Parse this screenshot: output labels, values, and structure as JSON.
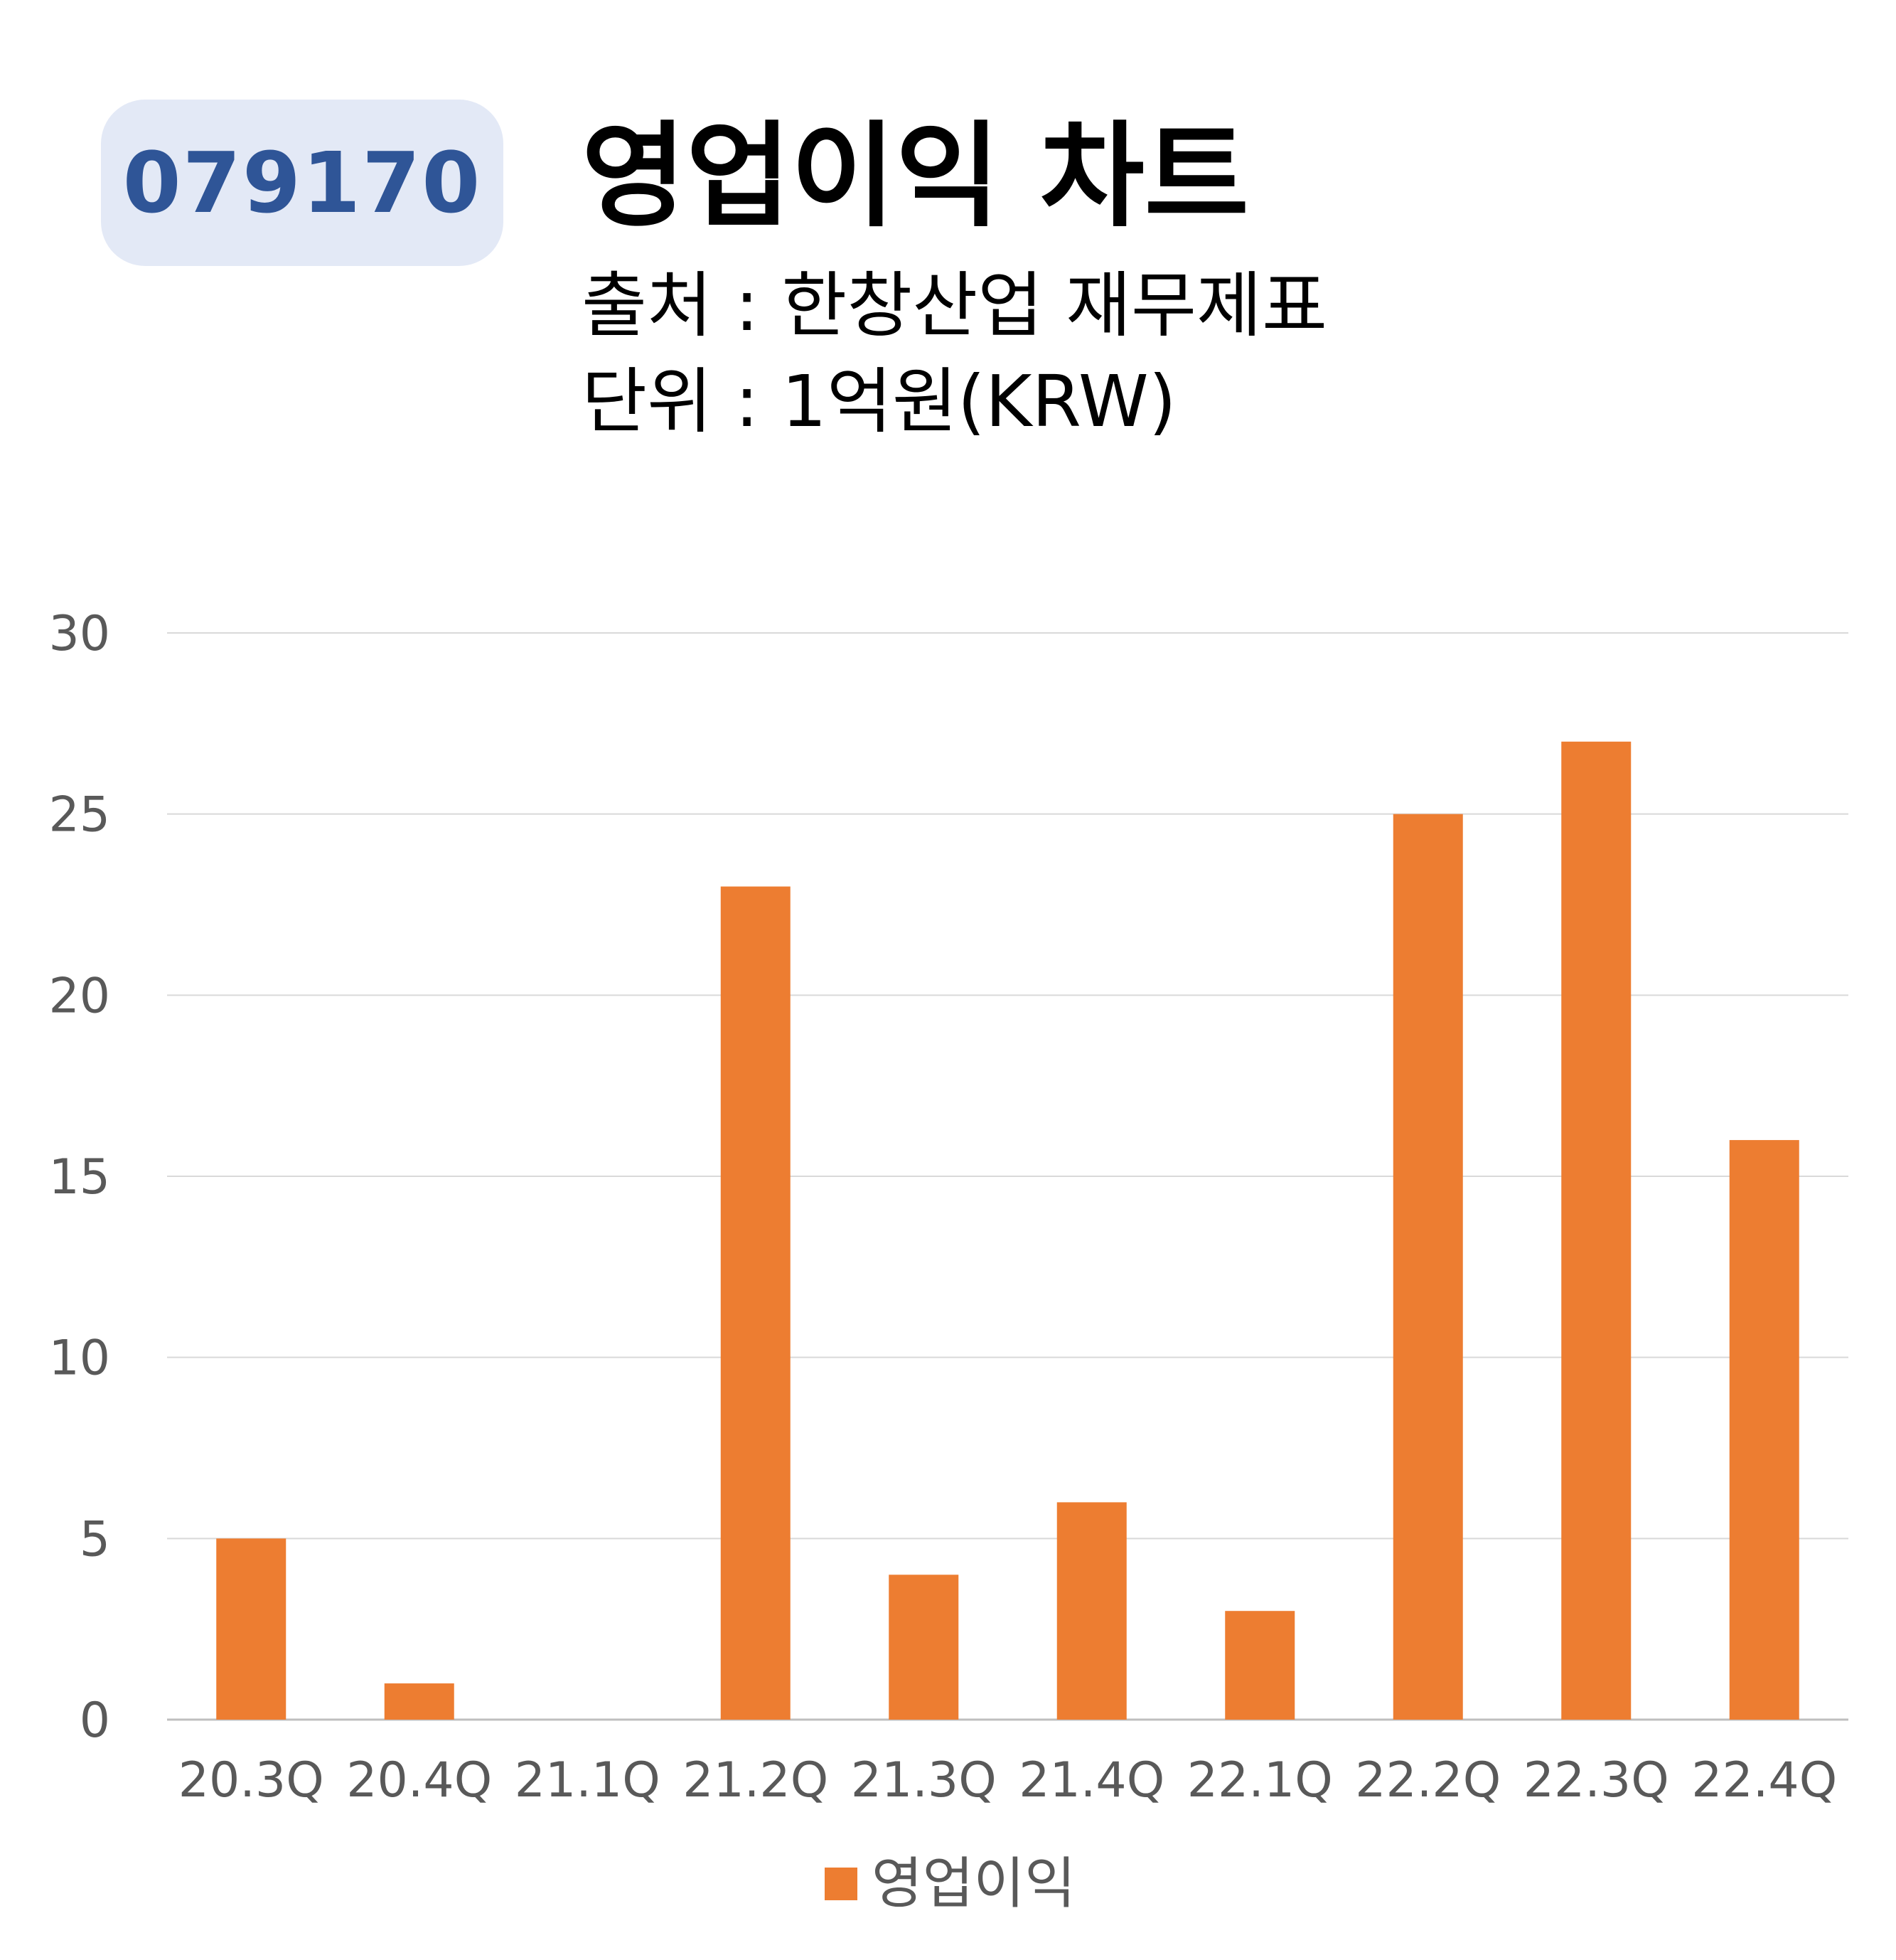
{
  "header": {
    "ticker": "079170",
    "title": "영업이익 차트",
    "source": "출처 : 한창산업 재무제표",
    "unit": "단위 : 1억원(KRW)"
  },
  "legend": {
    "label": "영업이익",
    "color": "#ed7d31"
  },
  "chart_data": {
    "type": "bar",
    "categories": [
      "20.3Q",
      "20.4Q",
      "21.1Q",
      "21.2Q",
      "21.3Q",
      "21.4Q",
      "22.1Q",
      "22.2Q",
      "22.3Q",
      "22.4Q"
    ],
    "series": [
      {
        "name": "영업이익",
        "values": [
          5,
          1,
          0,
          23,
          4,
          6,
          3,
          25,
          27,
          16
        ],
        "color": "#ed7d31"
      }
    ],
    "yticks": [
      "0",
      "5",
      "10",
      "15",
      "20",
      "25",
      "30"
    ],
    "ylim": [
      0,
      30
    ],
    "grid": true,
    "legend_position": "bottom"
  }
}
